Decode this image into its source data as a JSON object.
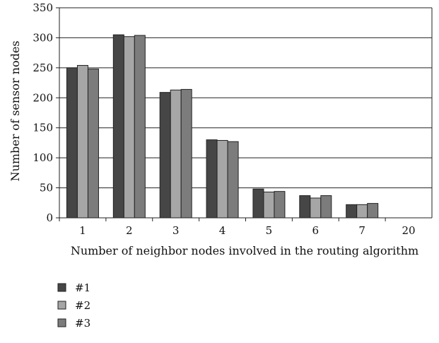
{
  "chart_data": {
    "type": "bar",
    "title": "",
    "xlabel": "Number of neighbor nodes involved in the routing algorithm",
    "ylabel": "Number of  sensor nodes",
    "categories": [
      "1",
      "2",
      "3",
      "4",
      "5",
      "6",
      "7",
      "20"
    ],
    "series": [
      {
        "name": "#1",
        "color": "#464646",
        "values": [
          250,
          305,
          209,
          130,
          48,
          37,
          22,
          0
        ]
      },
      {
        "name": "#2",
        "color": "#a6a6a6",
        "values": [
          254,
          302,
          213,
          129,
          43,
          33,
          22,
          0
        ]
      },
      {
        "name": "#3",
        "color": "#7c7c7c",
        "values": [
          248,
          304,
          214,
          127,
          44,
          37,
          24,
          0
        ]
      }
    ],
    "ylim": [
      0,
      350
    ],
    "yticks": [
      0,
      50,
      100,
      150,
      200,
      250,
      300,
      350
    ],
    "grid": true,
    "legend_position": "bottom-left"
  }
}
